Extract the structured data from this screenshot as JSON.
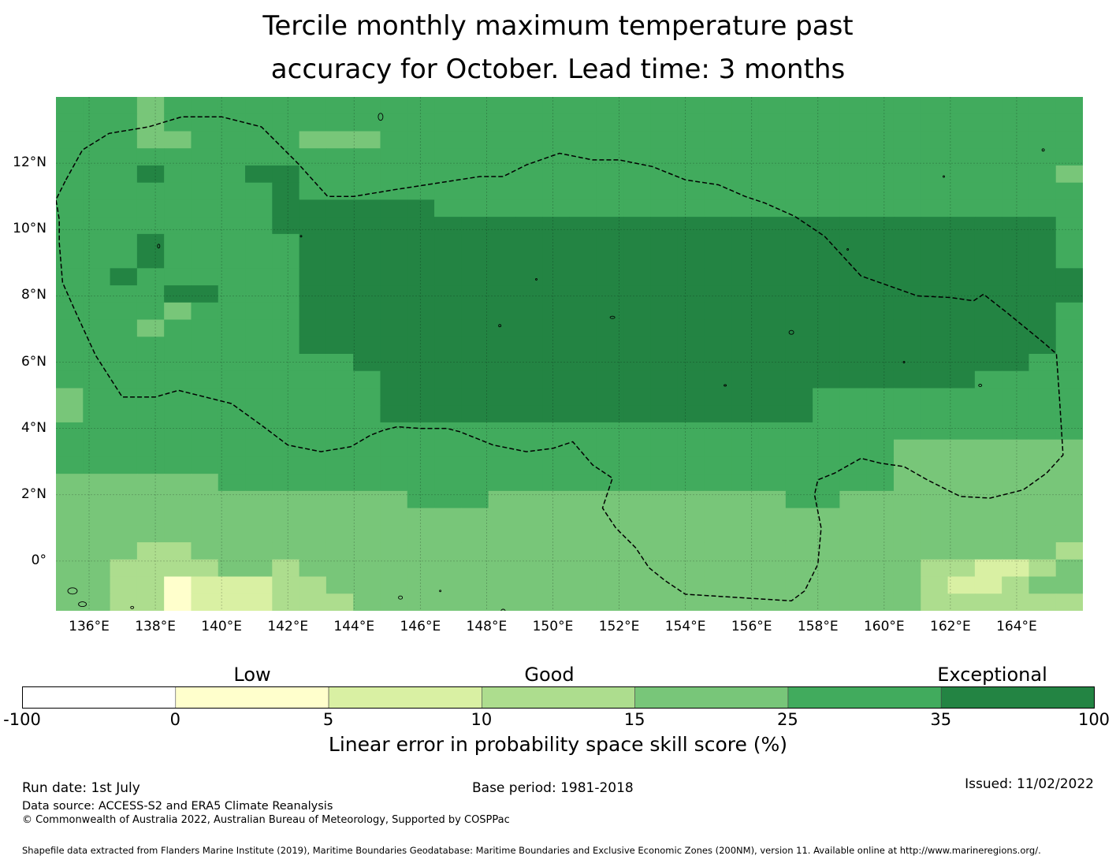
{
  "title": {
    "line1": "Tercile monthly maximum temperature past",
    "line2": "accuracy for October. Lead time: 3 months"
  },
  "map": {
    "lat_labels": [
      "12°N",
      "10°N",
      "8°N",
      "6°N",
      "4°N",
      "2°N",
      "0°"
    ],
    "lon_labels": [
      "136°E",
      "138°E",
      "140°E",
      "142°E",
      "144°E",
      "146°E",
      "148°E",
      "150°E",
      "152°E",
      "154°E",
      "156°E",
      "158°E",
      "160°E",
      "162°E",
      "164°E"
    ],
    "extent": {
      "lon_min": 135,
      "lon_max": 166,
      "lat_min": -1.5,
      "lat_max": 14
    },
    "boundary_style": "dashed black"
  },
  "colorbar": {
    "categories": [
      "Low",
      "Good",
      "Exceptional"
    ],
    "ticks": [
      "-100",
      "0",
      "5",
      "10",
      "15",
      "25",
      "35",
      "100"
    ],
    "colors": [
      "#ffffff",
      "#ffffcc",
      "#d9f0a3",
      "#addd8e",
      "#78c679",
      "#41ab5d",
      "#238443"
    ],
    "label": "Linear error in probability space skill score (%)"
  },
  "chart_data": {
    "type": "heatmap",
    "title": "Tercile monthly maximum temperature past accuracy for October. Lead time: 3 months",
    "value_label": "Linear error in probability space skill score (%)",
    "bins": [
      "-100–0",
      "0–5",
      "5–10",
      "10–15",
      "15–25",
      "25–35",
      "35–100"
    ],
    "x_axis": "longitude 135°E–166°E",
    "y_axis": "latitude 1.5°S–14°N",
    "grid_note": "cell values encoded as bin index 0-6 (0=-100..0 .. 6=35..100), rows north to south",
    "grid": [
      "55545555555555555555555555555555555555",
      "55545555555555555555555555555555555555",
      "55544555544455555555555555555555555555",
      "55555555555555555555555555555555555555",
      "55565556655555555555555555555555555554",
      "55555555655555555555555555555555555555",
      "55555555666666555555555555555555555555",
      "55555555666666666666666666666666666665",
      "55565555566666666666666666666666666665",
      "55565555566666666666666666666666666665",
      "55655555566666666666666666666666666666",
      "55556655566666666666666666666666666666",
      "55554555566666666666666666666666666665",
      "55545555566666666666666666666666666665",
      "55555555566666666666666666666666666665",
      "55555555555666666666666666666666666655",
      "55555555555566666666666666666666665555",
      "45555555555566666666666666665555555555",
      "45555555555566666666666666665555555555",
      "55555555555555555555555555555555555555",
      "55555555555555555555555555555554444444",
      "55555555555555555555555555555554444444",
      "44444455555555555555555555555554444444",
      "44444444444445554444444444455444444444",
      "44444444444444444444444444444444444444",
      "44444444444444444444444444444444444444",
      "44433444444444444444444444444444444443",
      "44333344344444444444444444444444332234",
      "44331222334444444444444444444444322344",
      "44331222333444444444444444444444333333"
    ]
  },
  "footer": {
    "run_date": "Run date: 1st July",
    "base_period": "Base period: 1981-2018",
    "issued": "Issued: 11/02/2022",
    "data_source": "Data source: ACCESS-S2 and ERA5 Climate Reanalysis",
    "copyright": "© Commonwealth of Australia 2022, Australian Bureau of Meteorology, Supported by COSPPac",
    "shapefile": "Shapefile data extracted from Flanders Marine Institute (2019), Maritime Boundaries Geodatabase: Maritime Boundaries and Exclusive Economic Zones (200NM), version 11. Available online at http://www.marineregions.org/."
  }
}
